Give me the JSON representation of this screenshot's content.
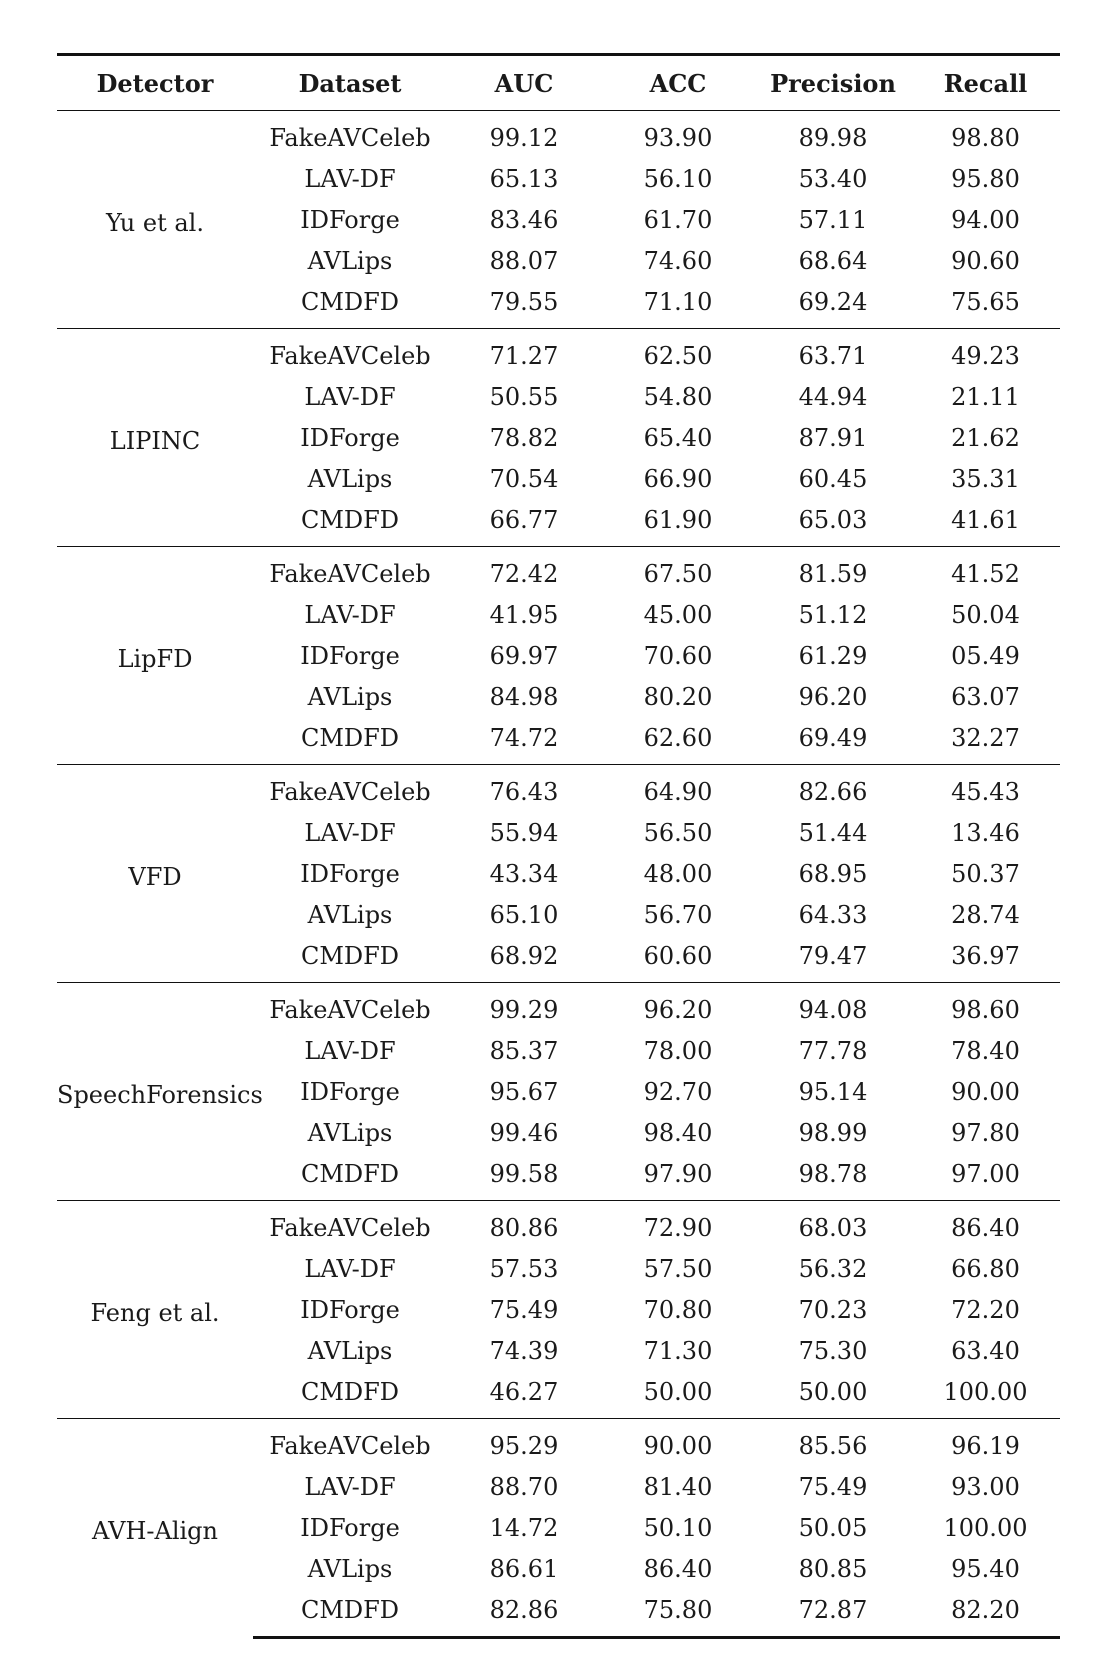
{
  "table": {
    "headers": {
      "detector": "Detector",
      "dataset": "Dataset",
      "auc": "AUC",
      "acc": "ACC",
      "precision": "Precision",
      "recall": "Recall"
    },
    "groups": [
      {
        "detector": "Yu et al.",
        "rows": [
          [
            "FakeAVCeleb",
            "99.12",
            "93.90",
            "89.98",
            "98.80"
          ],
          [
            "LAV-DF",
            "65.13",
            "56.10",
            "53.40",
            "95.80"
          ],
          [
            "IDForge",
            "83.46",
            "61.70",
            "57.11",
            "94.00"
          ],
          [
            "AVLips",
            "88.07",
            "74.60",
            "68.64",
            "90.60"
          ],
          [
            "CMDFD",
            "79.55",
            "71.10",
            "69.24",
            "75.65"
          ]
        ]
      },
      {
        "detector": "LIPINC",
        "rows": [
          [
            "FakeAVCeleb",
            "71.27",
            "62.50",
            "63.71",
            "49.23"
          ],
          [
            "LAV-DF",
            "50.55",
            "54.80",
            "44.94",
            "21.11"
          ],
          [
            "IDForge",
            "78.82",
            "65.40",
            "87.91",
            "21.62"
          ],
          [
            "AVLips",
            "70.54",
            "66.90",
            "60.45",
            "35.31"
          ],
          [
            "CMDFD",
            "66.77",
            "61.90",
            "65.03",
            "41.61"
          ]
        ]
      },
      {
        "detector": "LipFD",
        "rows": [
          [
            "FakeAVCeleb",
            "72.42",
            "67.50",
            "81.59",
            "41.52"
          ],
          [
            "LAV-DF",
            "41.95",
            "45.00",
            "51.12",
            "50.04"
          ],
          [
            "IDForge",
            "69.97",
            "70.60",
            "61.29",
            "05.49"
          ],
          [
            "AVLips",
            "84.98",
            "80.20",
            "96.20",
            "63.07"
          ],
          [
            "CMDFD",
            "74.72",
            "62.60",
            "69.49",
            "32.27"
          ]
        ]
      },
      {
        "detector": "VFD",
        "rows": [
          [
            "FakeAVCeleb",
            "76.43",
            "64.90",
            "82.66",
            "45.43"
          ],
          [
            "LAV-DF",
            "55.94",
            "56.50",
            "51.44",
            "13.46"
          ],
          [
            "IDForge",
            "43.34",
            "48.00",
            "68.95",
            "50.37"
          ],
          [
            "AVLips",
            "65.10",
            "56.70",
            "64.33",
            "28.74"
          ],
          [
            "CMDFD",
            "68.92",
            "60.60",
            "79.47",
            "36.97"
          ]
        ]
      },
      {
        "detector": "SpeechForensics",
        "rows": [
          [
            "FakeAVCeleb",
            "99.29",
            "96.20",
            "94.08",
            "98.60"
          ],
          [
            "LAV-DF",
            "85.37",
            "78.00",
            "77.78",
            "78.40"
          ],
          [
            "IDForge",
            "95.67",
            "92.70",
            "95.14",
            "90.00"
          ],
          [
            "AVLips",
            "99.46",
            "98.40",
            "98.99",
            "97.80"
          ],
          [
            "CMDFD",
            "99.58",
            "97.90",
            "98.78",
            "97.00"
          ]
        ]
      },
      {
        "detector": "Feng et al.",
        "rows": [
          [
            "FakeAVCeleb",
            "80.86",
            "72.90",
            "68.03",
            "86.40"
          ],
          [
            "LAV-DF",
            "57.53",
            "57.50",
            "56.32",
            "66.80"
          ],
          [
            "IDForge",
            "75.49",
            "70.80",
            "70.23",
            "72.20"
          ],
          [
            "AVLips",
            "74.39",
            "71.30",
            "75.30",
            "63.40"
          ],
          [
            "CMDFD",
            "46.27",
            "50.00",
            "50.00",
            "100.00"
          ]
        ]
      },
      {
        "detector": "AVH-Align",
        "rows": [
          [
            "FakeAVCeleb",
            "95.29",
            "90.00",
            "85.56",
            "96.19"
          ],
          [
            "LAV-DF",
            "88.70",
            "81.40",
            "75.49",
            "93.00"
          ],
          [
            "IDForge",
            "14.72",
            "50.10",
            "50.05",
            "100.00"
          ],
          [
            "AVLips",
            "86.61",
            "86.40",
            "80.85",
            "95.40"
          ],
          [
            "CMDFD",
            "82.86",
            "75.80",
            "72.87",
            "82.20"
          ]
        ]
      }
    ]
  }
}
